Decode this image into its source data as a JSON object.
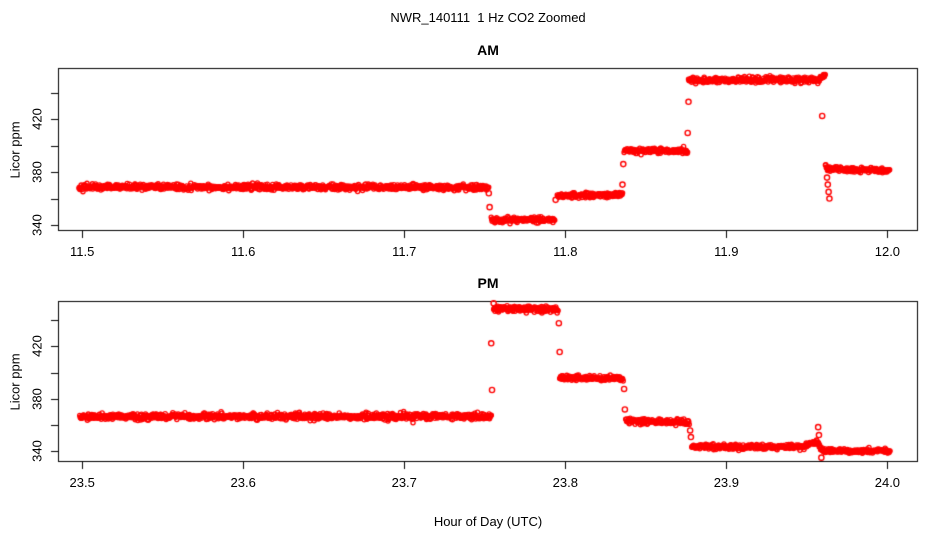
{
  "figure": {
    "title": "NWR_140111  1 Hz CO2 Zoomed",
    "xlabel": "Hour of Day (UTC)",
    "background": "#ffffff",
    "point_color": "#ff0000",
    "axis_color": "#000000"
  },
  "chart_data": [
    {
      "type": "scatter",
      "panel": "AM",
      "title": "AM",
      "ylabel": "Licor ppm",
      "marker": "open-circle",
      "color": "#ff0000",
      "sample_rate_hz": 1,
      "xlim": [
        11.485,
        12.019
      ],
      "ylim": [
        335.5,
        458.5
      ],
      "xticks": {
        "values": [
          11.5,
          11.6,
          11.7,
          11.8,
          11.9,
          12.0
        ],
        "labels": [
          "11.5",
          "11.6",
          "11.7",
          "11.8",
          "11.9",
          "12.0"
        ]
      },
      "yticks": {
        "values": [
          340,
          360,
          380,
          400,
          420,
          440
        ],
        "labels": [
          "340",
          "",
          "380",
          "",
          "420",
          ""
        ]
      },
      "grid": false,
      "segments": [
        {
          "t0": 11.498,
          "t1": 11.7525,
          "v0": 368.8,
          "v1": 368.3,
          "sigma": 1.1
        },
        {
          "t0": 11.754,
          "t1": 11.7935,
          "v0": 343.6,
          "v1": 344.2,
          "sigma": 1.0
        },
        {
          "t0": 11.795,
          "t1": 11.8355,
          "v0": 362.0,
          "v1": 363.0,
          "sigma": 1.0
        },
        {
          "t0": 11.8365,
          "t1": 11.876,
          "v0": 396.2,
          "v1": 395.8,
          "sigma": 1.0
        },
        {
          "t0": 11.8765,
          "t1": 11.9575,
          "v0": 449.3,
          "v1": 449.7,
          "sigma": 1.2
        },
        {
          "t0": 11.9575,
          "t1": 11.9615,
          "v0": 450.0,
          "v1": 453.2,
          "sigma": 0.8
        },
        {
          "t0": 11.9615,
          "t1": 11.9625,
          "v0": 385.0,
          "v1": 383.5,
          "sigma": 0.7
        },
        {
          "t0": 11.9625,
          "t1": 12.0015,
          "v0": 382.5,
          "v1": 381.0,
          "sigma": 0.9
        }
      ],
      "outliers": [
        [
          11.7525,
          364.0
        ],
        [
          11.753,
          353.5
        ],
        [
          11.794,
          359.0
        ],
        [
          11.8355,
          370.5
        ],
        [
          11.836,
          386.0
        ],
        [
          11.876,
          409.5
        ],
        [
          11.8765,
          433.0
        ],
        [
          11.9595,
          422.3
        ],
        [
          11.9625,
          375.8
        ],
        [
          11.963,
          370.5
        ],
        [
          11.9635,
          365.0
        ],
        [
          11.964,
          360.0
        ]
      ]
    },
    {
      "type": "scatter",
      "panel": "PM",
      "title": "PM",
      "ylabel": "Licor ppm",
      "marker": "open-circle",
      "color": "#ff0000",
      "sample_rate_hz": 1,
      "xlim": [
        23.485,
        24.019
      ],
      "ylim": [
        332.0,
        454.5
      ],
      "xticks": {
        "values": [
          23.5,
          23.6,
          23.7,
          23.8,
          23.9,
          24.0
        ],
        "labels": [
          "23.5",
          "23.6",
          "23.7",
          "23.8",
          "23.9",
          "24.0"
        ]
      },
      "yticks": {
        "values": [
          340,
          360,
          380,
          400,
          420,
          440
        ],
        "labels": [
          "340",
          "",
          "380",
          "",
          "420",
          ""
        ]
      },
      "grid": false,
      "segments": [
        {
          "t0": 23.4985,
          "t1": 23.754,
          "v0": 366.6,
          "v1": 366.6,
          "sigma": 1.15
        },
        {
          "t0": 23.7555,
          "t1": 23.7955,
          "v0": 448.7,
          "v1": 448.0,
          "sigma": 1.3
        },
        {
          "t0": 23.7965,
          "t1": 23.836,
          "v0": 396.0,
          "v1": 395.3,
          "sigma": 1.1
        },
        {
          "t0": 23.8375,
          "t1": 23.877,
          "v0": 363.2,
          "v1": 362.3,
          "sigma": 1.0
        },
        {
          "t0": 23.8785,
          "t1": 23.949,
          "v0": 343.6,
          "v1": 343.3,
          "sigma": 1.0
        },
        {
          "t0": 23.949,
          "t1": 23.956,
          "v0": 344.0,
          "v1": 347.8,
          "sigma": 0.9
        },
        {
          "t0": 23.956,
          "t1": 23.9605,
          "v0": 347.0,
          "v1": 341.0,
          "sigma": 0.9
        },
        {
          "t0": 23.9605,
          "t1": 24.0015,
          "v0": 340.6,
          "v1": 340.3,
          "sigma": 0.9
        }
      ],
      "outliers": [
        [
          23.754,
          422.3
        ],
        [
          23.7545,
          386.8
        ],
        [
          23.7555,
          452.7
        ],
        [
          23.796,
          437.6
        ],
        [
          23.7965,
          415.7
        ],
        [
          23.8365,
          387.6
        ],
        [
          23.837,
          372.0
        ],
        [
          23.8775,
          356.0
        ],
        [
          23.878,
          351.0
        ],
        [
          23.957,
          358.5
        ],
        [
          23.9575,
          352.5
        ],
        [
          23.959,
          335.3
        ]
      ]
    }
  ]
}
